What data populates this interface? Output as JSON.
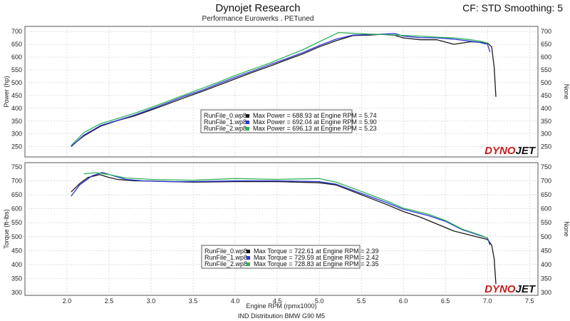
{
  "header": {
    "title": "Dynojet Research",
    "subtitle": "Performance Eurowerks . PETuned",
    "cf_label": "CF: STD Smoothing: 5"
  },
  "footer": {
    "caption": "IND Distribution   BMW G90 M5"
  },
  "logo": {
    "left": "DYNO",
    "right": "JET"
  },
  "colors": {
    "run0": "#1a1a1a",
    "run1": "#2b37d6",
    "run2": "#2fb25a",
    "plot_bg": "#ffffff",
    "grid": "#c9c9c9",
    "frame": "#555555",
    "logo_red": "#cc1a1a"
  },
  "chart_data": [
    {
      "type": "line",
      "id": "power",
      "ylabel_left": "Power (hp)",
      "ylabel_right": "None",
      "xlim": [
        1.5,
        7.6
      ],
      "ylim": [
        210,
        720
      ],
      "yticks": [
        250,
        300,
        350,
        400,
        450,
        500,
        550,
        600,
        650,
        700
      ],
      "grid": true,
      "legend": {
        "position": "center",
        "entries": [
          {
            "file": "RunFile_0.wp8",
            "text": "Max Power = 688.93 at Engine RPM = 5.74"
          },
          {
            "file": "RunFile_1.wp8",
            "text": "Max Power = 692.04 at Engine RPM = 5.90"
          },
          {
            "file": "RunFile_2.wp8",
            "text": "Max Power = 696.13 at Engine RPM = 5.23"
          }
        ]
      },
      "series": [
        {
          "name": "RunFile_0.wp8",
          "color": "#1a1a1a",
          "x": [
            2.05,
            2.2,
            2.4,
            2.6,
            2.8,
            3.0,
            3.2,
            3.4,
            3.6,
            3.8,
            4.0,
            4.2,
            4.4,
            4.6,
            4.8,
            5.0,
            5.2,
            5.4,
            5.6,
            5.74,
            5.9,
            6.0,
            6.2,
            6.4,
            6.6,
            6.8,
            6.9,
            7.0,
            7.05,
            7.08,
            7.1
          ],
          "y": [
            252,
            292,
            330,
            352,
            370,
            393,
            417,
            442,
            465,
            490,
            515,
            540,
            563,
            588,
            612,
            640,
            664,
            684,
            686,
            689,
            685,
            675,
            668,
            668,
            650,
            660,
            658,
            655,
            640,
            560,
            445
          ]
        },
        {
          "name": "RunFile_1.wp8",
          "color": "#2b37d6",
          "x": [
            2.05,
            2.2,
            2.4,
            2.6,
            2.8,
            3.0,
            3.2,
            3.4,
            3.6,
            3.8,
            4.0,
            4.2,
            4.4,
            4.6,
            4.8,
            5.0,
            5.2,
            5.4,
            5.6,
            5.9,
            6.0,
            6.2,
            6.4,
            6.6,
            6.8,
            6.9,
            7.0,
            7.03
          ],
          "y": [
            250,
            295,
            333,
            353,
            373,
            397,
            422,
            448,
            470,
            496,
            521,
            545,
            569,
            593,
            617,
            645,
            670,
            686,
            688,
            692,
            682,
            676,
            675,
            670,
            662,
            658,
            650,
            620
          ]
        },
        {
          "name": "RunFile_2.wp8",
          "color": "#2fb25a",
          "x": [
            2.05,
            2.2,
            2.4,
            2.6,
            2.8,
            3.0,
            3.2,
            3.4,
            3.6,
            3.8,
            4.0,
            4.2,
            4.4,
            4.6,
            4.8,
            5.0,
            5.23,
            5.4,
            5.6,
            5.8,
            6.0,
            6.2,
            6.4,
            6.6,
            6.8,
            6.9,
            7.0
          ],
          "y": [
            255,
            305,
            340,
            360,
            380,
            403,
            428,
            453,
            477,
            502,
            528,
            552,
            575,
            602,
            628,
            660,
            696,
            693,
            690,
            688,
            685,
            682,
            678,
            675,
            668,
            663,
            655
          ]
        }
      ]
    },
    {
      "type": "line",
      "id": "torque",
      "ylabel_left": "Torque (ft-lbs)",
      "ylabel_right": "None",
      "xlabel": "Engine RPM (rpmx1000)",
      "xlim": [
        1.5,
        7.6
      ],
      "ylim": [
        290,
        765
      ],
      "xticks": [
        2.0,
        2.5,
        3.0,
        3.5,
        4.0,
        4.5,
        5.0,
        5.5,
        6.0,
        6.5,
        7.0,
        7.5
      ],
      "yticks": [
        300,
        350,
        400,
        450,
        500,
        550,
        600,
        650,
        700,
        750
      ],
      "grid": true,
      "legend": {
        "position": "bottom-center",
        "entries": [
          {
            "file": "RunFile_0.wp8",
            "text": "Max Torque = 722.61 at Engine RPM = 2.39"
          },
          {
            "file": "RunFile_1.wp8",
            "text": "Max Torque = 729.59 at Engine RPM = 2.42"
          },
          {
            "file": "RunFile_2.wp8",
            "text": "Max Torque = 728.83 at Engine RPM = 2.35"
          }
        ]
      },
      "series": [
        {
          "name": "RunFile_0.wp8",
          "color": "#1a1a1a",
          "x": [
            2.05,
            2.15,
            2.25,
            2.39,
            2.5,
            2.6,
            2.8,
            3.0,
            3.5,
            4.0,
            4.5,
            5.0,
            5.2,
            5.5,
            5.8,
            6.0,
            6.2,
            6.4,
            6.6,
            6.8,
            7.0,
            7.05,
            7.08,
            7.1
          ],
          "y": [
            660,
            690,
            712,
            722,
            712,
            705,
            700,
            699,
            695,
            697,
            697,
            693,
            685,
            650,
            615,
            590,
            570,
            545,
            520,
            505,
            490,
            470,
            420,
            330
          ]
        },
        {
          "name": "RunFile_1.wp8",
          "color": "#2b37d6",
          "x": [
            2.05,
            2.15,
            2.3,
            2.42,
            2.55,
            2.7,
            2.9,
            3.2,
            3.5,
            4.0,
            4.5,
            5.0,
            5.2,
            5.5,
            5.8,
            6.0,
            6.3,
            6.5,
            6.7,
            6.9,
            7.0,
            7.03
          ],
          "y": [
            645,
            685,
            718,
            730,
            718,
            705,
            700,
            697,
            697,
            700,
            700,
            697,
            688,
            655,
            622,
            598,
            575,
            555,
            525,
            505,
            495,
            470
          ]
        },
        {
          "name": "RunFile_2.wp8",
          "color": "#2fb25a",
          "x": [
            2.2,
            2.35,
            2.5,
            2.7,
            3.0,
            3.5,
            4.0,
            4.5,
            5.0,
            5.2,
            5.5,
            5.8,
            6.0,
            6.3,
            6.5,
            6.7,
            6.9,
            7.0
          ],
          "y": [
            725,
            729,
            722,
            710,
            705,
            702,
            708,
            705,
            708,
            695,
            662,
            628,
            602,
            580,
            558,
            527,
            507,
            495
          ]
        }
      ]
    }
  ]
}
